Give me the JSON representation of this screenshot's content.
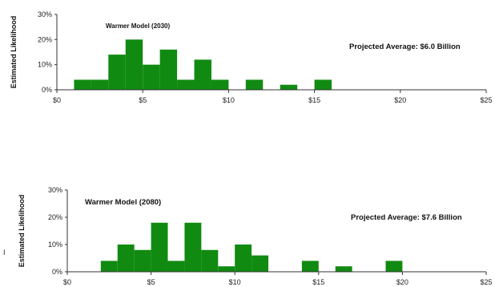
{
  "chart_data": [
    {
      "type": "bar",
      "title": "Warmer Model (2030)",
      "annotation": "Projected Average: $6.0 Billion",
      "ylabel": "Estimated Likelihood",
      "xlabel": "",
      "x_ticks": [
        "$0",
        "$5",
        "$10",
        "$15",
        "$20",
        "$25"
      ],
      "y_ticks": [
        "0%",
        "10%",
        "20%",
        "30%"
      ],
      "xlim": [
        0,
        25
      ],
      "ylim": [
        0,
        30
      ],
      "bin_width": 1,
      "bins": [
        {
          "x": 1,
          "value": 4
        },
        {
          "x": 2,
          "value": 4
        },
        {
          "x": 3,
          "value": 14
        },
        {
          "x": 4,
          "value": 20
        },
        {
          "x": 5,
          "value": 10
        },
        {
          "x": 6,
          "value": 16
        },
        {
          "x": 7,
          "value": 4
        },
        {
          "x": 8,
          "value": 12
        },
        {
          "x": 9,
          "value": 4
        },
        {
          "x": 11,
          "value": 4
        },
        {
          "x": 13,
          "value": 2
        },
        {
          "x": 15,
          "value": 4
        }
      ],
      "grid": false,
      "color": "#118a11"
    },
    {
      "type": "bar",
      "title": "Warmer Model (2080)",
      "annotation": "Projected Average: $7.6 Billion",
      "ylabel": "Estimated Likelihood",
      "xlabel": "",
      "x_ticks": [
        "$0",
        "$5",
        "$10",
        "$15",
        "$20",
        "$25"
      ],
      "y_ticks": [
        "0%",
        "10%",
        "20%",
        "30%"
      ],
      "xlim": [
        0,
        25
      ],
      "ylim": [
        0,
        30
      ],
      "bin_width": 1,
      "bins": [
        {
          "x": 2,
          "value": 4
        },
        {
          "x": 3,
          "value": 10
        },
        {
          "x": 4,
          "value": 8
        },
        {
          "x": 5,
          "value": 18
        },
        {
          "x": 6,
          "value": 4
        },
        {
          "x": 7,
          "value": 18
        },
        {
          "x": 8,
          "value": 8
        },
        {
          "x": 9,
          "value": 2
        },
        {
          "x": 10,
          "value": 10
        },
        {
          "x": 11,
          "value": 6
        },
        {
          "x": 14,
          "value": 4
        },
        {
          "x": 16,
          "value": 2
        },
        {
          "x": 19,
          "value": 4
        }
      ],
      "grid": false,
      "color": "#118a11"
    }
  ],
  "side_mark": "I"
}
